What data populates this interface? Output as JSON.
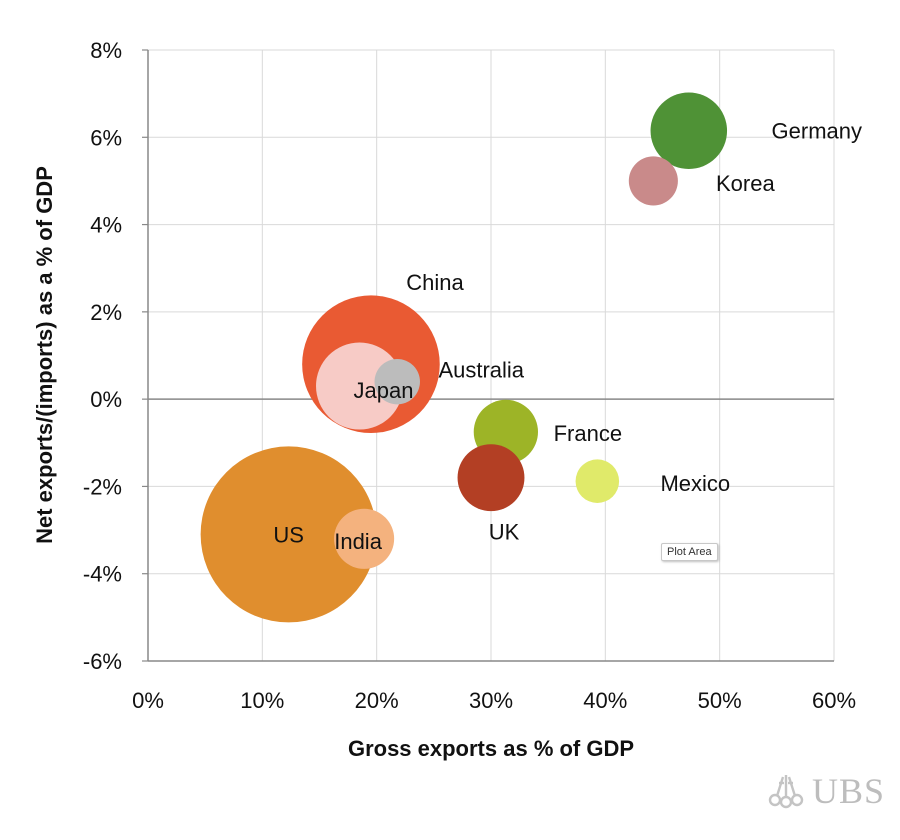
{
  "chart_data": {
    "type": "bubble",
    "xlabel": "Gross exports as % of GDP",
    "ylabel": "Net exports/(imports) as a % of GDP",
    "xlim": [
      0,
      60
    ],
    "ylim": [
      -6,
      8
    ],
    "x_ticks": [
      "0%",
      "10%",
      "20%",
      "30%",
      "40%",
      "50%",
      "60%"
    ],
    "y_ticks": [
      "8%",
      "6%",
      "4%",
      "2%",
      "0%",
      "-2%",
      "-4%",
      "-6%"
    ],
    "grid": true,
    "points": [
      {
        "name": "US",
        "x": 12.3,
        "y": -3.1,
        "size": 18.0,
        "color": "#e08e2e"
      },
      {
        "name": "China",
        "x": 19.5,
        "y": 0.8,
        "size": 11.0,
        "color": "#e95a33"
      },
      {
        "name": "Japan",
        "x": 18.5,
        "y": 0.3,
        "size": 4.4,
        "color": "#f7cbc6"
      },
      {
        "name": "India",
        "x": 18.9,
        "y": -3.2,
        "size": 2.1,
        "color": "#f4b27e"
      },
      {
        "name": "Australia",
        "x": 21.8,
        "y": 0.4,
        "size": 1.2,
        "color": "#bcbcbc"
      },
      {
        "name": "Germany",
        "x": 47.3,
        "y": 6.15,
        "size": 3.4,
        "color": "#4f9236"
      },
      {
        "name": "Korea",
        "x": 44.2,
        "y": 5.0,
        "size": 1.4,
        "color": "#c98a8a"
      },
      {
        "name": "France",
        "x": 31.3,
        "y": -0.75,
        "size": 2.4,
        "color": "#9db427"
      },
      {
        "name": "UK",
        "x": 30.0,
        "y": -1.8,
        "size": 2.6,
        "color": "#b33f24"
      },
      {
        "name": "Mexico",
        "x": 39.3,
        "y": -1.88,
        "size": 1.1,
        "color": "#e0ea6a"
      }
    ]
  },
  "tooltip_text": "Plot Area",
  "logo_text": "UBS"
}
